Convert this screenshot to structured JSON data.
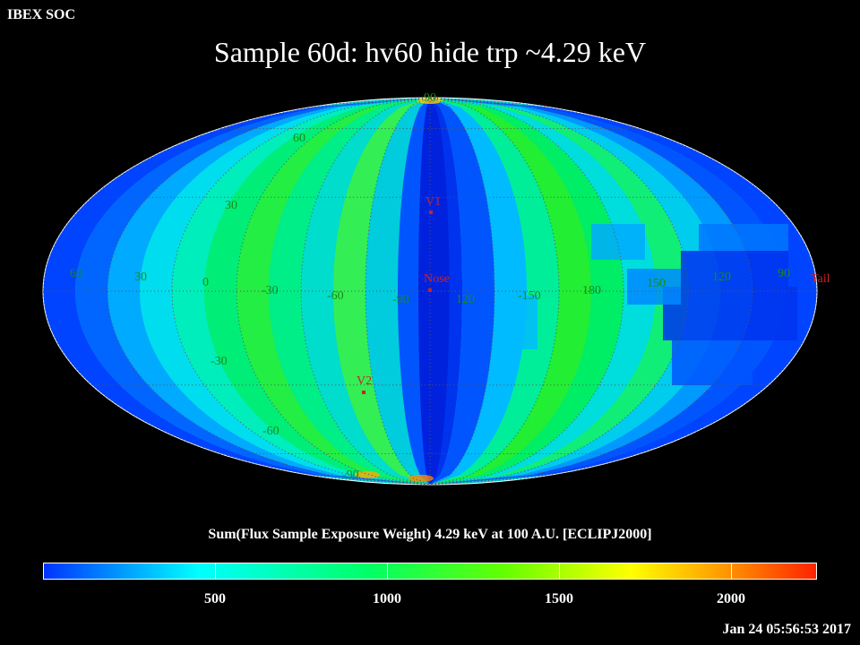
{
  "header": {
    "corner_label": "IBEX SOC",
    "title": "Sample 60d: hv60 hide trp ~4.29 keV"
  },
  "map": {
    "projection": "Mollweide (ecliptic J2000)",
    "lat_labels": [
      "90",
      "60",
      "30",
      "-30",
      "-60",
      "-90"
    ],
    "lon_labels": [
      "60",
      "30",
      "0",
      "-30",
      "-60",
      "-90",
      "120",
      "-150",
      "180",
      "150",
      "120",
      "90"
    ],
    "markers": [
      {
        "name": "V1",
        "label": "V1"
      },
      {
        "name": "Nose",
        "label": "Nose"
      },
      {
        "name": "V2",
        "label": "V2"
      },
      {
        "name": "Tail",
        "label": "Tail"
      }
    ],
    "colors": {
      "grid": "#555555",
      "marker_red": "#cc2222",
      "label_green": "#1a8a1a"
    }
  },
  "colorbar": {
    "title": "Sum(Flux Sample Exposure Weight)  4.29 keV at 100 A.U. [ECLIPJ2000]",
    "range": [
      0,
      2250
    ],
    "ticks": [
      "500",
      "1000",
      "1500",
      "2000"
    ],
    "tick_values": [
      500,
      1000,
      1500,
      2000
    ],
    "gradient": [
      "#0033ff",
      "#00ffff",
      "#00ff66",
      "#66ff00",
      "#ffff00",
      "#ff9900",
      "#ff2200"
    ]
  },
  "footer": {
    "timestamp": "Jan 24 05:56:53 2017"
  }
}
